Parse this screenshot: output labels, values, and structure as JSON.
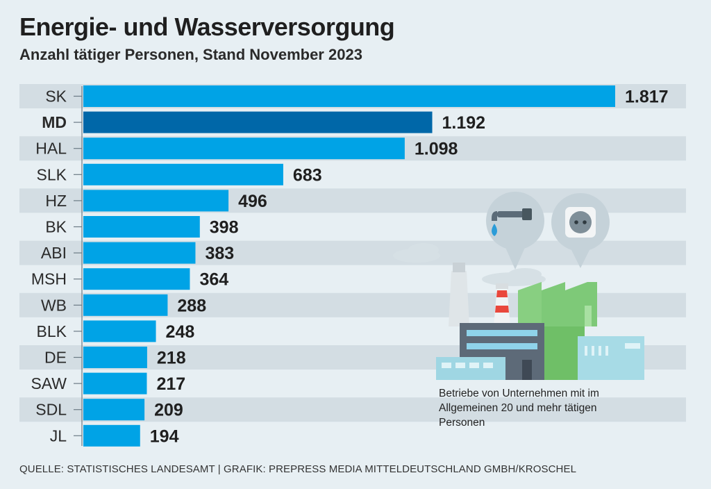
{
  "header": {
    "title": "Energie- und Wasserversorgung",
    "subtitle": "Anzahl tätiger Personen,  Stand November 2023"
  },
  "note": "Betriebe von Unternehmen mit im Allgemeinen 20 und mehr tätigen Personen",
  "source": "QUELLE: STATISTISCHES LANDESAMT | GRAFIK: PREPRESS MEDIA MITTELDEUTSCHLAND GMBH/KROSCHEL",
  "colors": {
    "bar": "#00a3e6",
    "highlight": "#0067a8",
    "stripe": "#d3dde3",
    "background": "#e7eff3"
  },
  "illustration": {
    "icons": [
      "water-tap-icon",
      "power-socket-icon",
      "factory-icon"
    ]
  },
  "chart_data": {
    "type": "bar",
    "orientation": "horizontal",
    "title": "Energie- und Wasserversorgung",
    "subtitle": "Anzahl tätiger Personen,  Stand November 2023",
    "categories": [
      "SK",
      "MD",
      "HAL",
      "SLK",
      "HZ",
      "BK",
      "ABI",
      "MSH",
      "WB",
      "BLK",
      "DE",
      "SAW",
      "SDL",
      "JL"
    ],
    "values": [
      1817,
      1192,
      1098,
      683,
      496,
      398,
      383,
      364,
      288,
      248,
      218,
      217,
      209,
      194
    ],
    "value_labels": [
      "1.817",
      "1.192",
      "1.098",
      "683",
      "496",
      "398",
      "383",
      "364",
      "288",
      "248",
      "218",
      "217",
      "209",
      "194"
    ],
    "highlight": "MD",
    "xlim": [
      0,
      1817
    ],
    "xlabel": "",
    "ylabel": "",
    "grid": false
  }
}
